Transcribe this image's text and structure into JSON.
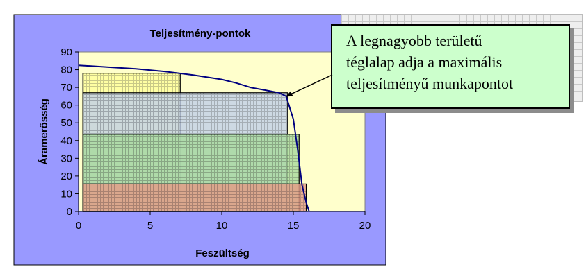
{
  "chart_data": {
    "type": "line",
    "title": "Teljesítmény-pontok",
    "xlabel": "Feszültség",
    "ylabel": "Áramerősség",
    "xlim": [
      0,
      20
    ],
    "ylim": [
      0,
      90
    ],
    "x_ticks": [
      "0",
      "5",
      "10",
      "15",
      "20"
    ],
    "y_ticks": [
      "0",
      "10",
      "20",
      "30",
      "40",
      "50",
      "60",
      "70",
      "80",
      "90"
    ],
    "grid": false,
    "legend": "none",
    "series": [
      {
        "x": [
          0,
          2,
          4,
          6,
          8,
          10,
          11,
          12,
          13,
          14,
          14.5,
          15,
          15.3,
          15.6,
          15.9,
          16.1
        ],
        "y": [
          82.5,
          81.5,
          80.5,
          79,
          77,
          74.5,
          72.5,
          70,
          68.5,
          67,
          65,
          52,
          35,
          15,
          5,
          0
        ]
      }
    ],
    "rectangles": [
      {
        "x0": 0.3,
        "x1": 7.1,
        "y0": 0,
        "y1": 78,
        "fill": "#ffff99"
      },
      {
        "x0": 0.3,
        "x1": 14.6,
        "y0": 0,
        "y1": 67,
        "fill": "#c0cfe8"
      },
      {
        "x0": 0.3,
        "x1": 15.4,
        "y0": 0,
        "y1": 43.5,
        "fill": "#a7d99c"
      },
      {
        "x0": 0.3,
        "x1": 15.9,
        "y0": 0,
        "y1": 15.5,
        "fill": "#e59a86"
      }
    ],
    "colors": {
      "outer_bg": "#9999ff",
      "plot_bg": "#ffffcc",
      "curve": "#000080"
    },
    "annotation": {
      "lines": [
        "A legnagyobb területű",
        "téglalap adja a maximális",
        "teljesítményű munkapontot"
      ],
      "target": {
        "x": 14.5,
        "y": 65
      }
    }
  }
}
